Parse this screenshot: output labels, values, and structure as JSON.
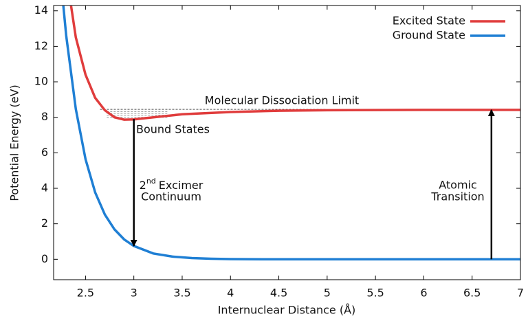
{
  "chart_data": {
    "type": "line",
    "xlabel": "Internuclear Distance (Å)",
    "ylabel": "Potential Energy (eV)",
    "xlim": [
      2.17,
      7
    ],
    "xticks": [
      2.5,
      3,
      3.5,
      4,
      4.5,
      5,
      5.5,
      6,
      6.5,
      7
    ],
    "ylim": [
      -1.15,
      14.3
    ],
    "yticks": [
      0,
      2,
      4,
      6,
      8,
      10,
      12,
      14
    ],
    "grid": false,
    "legend": "top-right",
    "series": [
      {
        "name": "Excited State",
        "color": "#e03c3c",
        "x": [
          2.35,
          2.4,
          2.5,
          2.6,
          2.7,
          2.8,
          2.9,
          3.0,
          3.2,
          3.5,
          4,
          4.5,
          5,
          6,
          7
        ],
        "values": [
          14.3,
          12.5,
          10.4,
          9.1,
          8.4,
          8.0,
          7.87,
          7.88,
          8.0,
          8.17,
          8.3,
          8.37,
          8.4,
          8.42,
          8.42
        ]
      },
      {
        "name": "Ground State",
        "color": "#1f7fd4",
        "x": [
          2.27,
          2.3,
          2.4,
          2.5,
          2.6,
          2.7,
          2.8,
          2.9,
          3.0,
          3.2,
          3.4,
          3.6,
          3.8,
          4,
          4.5,
          5,
          6,
          7
        ],
        "values": [
          14.3,
          12.6,
          8.46,
          5.64,
          3.77,
          2.52,
          1.68,
          1.12,
          0.75,
          0.33,
          0.15,
          0.07,
          0.03,
          0.01,
          0,
          0,
          0,
          0
        ]
      }
    ],
    "annotations": {
      "dissociation": "Molecular Dissociation Limit",
      "bound": "Bound States",
      "excimer": {
        "base": "2",
        "superscript": "nd",
        "rest": "Excimer",
        "line2": "Continuum"
      },
      "atomic": {
        "line1": "Atomic",
        "line2": "Transition"
      }
    }
  }
}
